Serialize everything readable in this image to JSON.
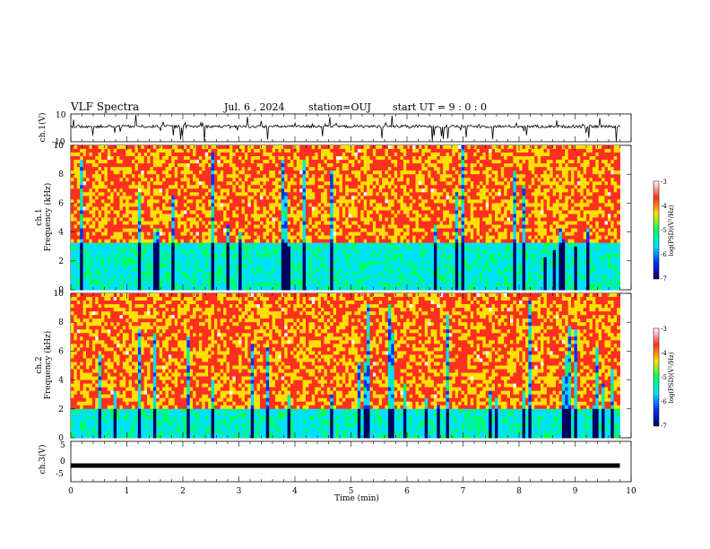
{
  "chart_data": [
    {
      "type": "line",
      "panel": "ch1_waveform",
      "ylabel": "ch.1(V)",
      "ylim": [
        -10,
        10
      ],
      "yticks": [
        "10",
        "-10"
      ],
      "xlim": [
        0,
        10
      ],
      "baseline": 1,
      "spike_range": [
        -10,
        10
      ],
      "line_color": "#000000"
    },
    {
      "type": "heatmap",
      "panel": "ch1_spectrogram",
      "ylabel_channel": "ch.1",
      "ylabel": "Frequency (kHz)",
      "ylim": [
        0,
        10
      ],
      "yticks": [
        "0",
        "2",
        "4",
        "6",
        "8",
        "10"
      ],
      "xlim": [
        0,
        9.8
      ],
      "noise_floor_below_khz": 3.3,
      "data_end_min": 9.8,
      "colorbar": {
        "label": "log(PSD)(V²/Hz)",
        "ticks": [
          "-3",
          "-4",
          "-5",
          "-6",
          "-7"
        ],
        "range": [
          -7,
          -3
        ]
      }
    },
    {
      "type": "heatmap",
      "panel": "ch2_spectrogram",
      "ylabel_channel": "ch.2",
      "ylabel": "Frequency (kHz)",
      "ylim": [
        0,
        10
      ],
      "yticks": [
        "0",
        "2",
        "4",
        "6",
        "8",
        "10"
      ],
      "xlim": [
        0,
        9.8
      ],
      "noise_floor_below_khz": 2.0,
      "data_end_min": 9.8,
      "colorbar": {
        "label": "log(PSD)(V²/Hz)",
        "ticks": [
          "-3",
          "-4",
          "-5",
          "-6",
          "-7"
        ],
        "range": [
          -7,
          -3
        ]
      }
    },
    {
      "type": "line",
      "panel": "ch3_waveform",
      "ylabel": "ch.3(V)",
      "ylim": [
        -5,
        5
      ],
      "yticks": [
        "5",
        "0",
        "-5"
      ],
      "xlim": [
        0,
        9.8
      ],
      "values_constant": -1,
      "xlabel": "Time (min)",
      "xticks": [
        "0",
        "1",
        "2",
        "3",
        "4",
        "5",
        "6",
        "7",
        "8",
        "9",
        "10"
      ]
    }
  ],
  "header": {
    "title": "VLF Spectra",
    "date": "Jul. 6 , 2024",
    "station": "station=OUJ",
    "start": "start UT = 9 : 0 : 0"
  },
  "colors": {
    "colormap": [
      "#ffffff",
      "#ff3020",
      "#ffe000",
      "#00ff60",
      "#00e0ff",
      "#0030ff",
      "#000060"
    ]
  }
}
